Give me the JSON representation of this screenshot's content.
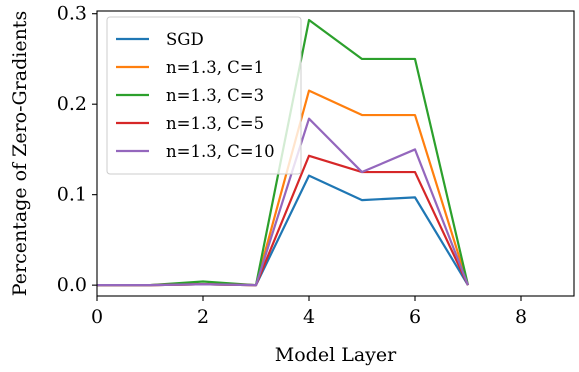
{
  "chart_data": {
    "type": "line",
    "title": "",
    "xlabel": "Model Layer",
    "ylabel": "Percentage of Zero-Gradients",
    "xlim": [
      0,
      9
    ],
    "ylim": [
      -0.012,
      0.303
    ],
    "xticks": [
      0,
      2,
      4,
      6,
      8
    ],
    "yticks": [
      0.0,
      0.1,
      0.2,
      0.3
    ],
    "xtick_labels": [
      "0",
      "2",
      "4",
      "6",
      "8"
    ],
    "ytick_labels": [
      "0.0",
      "0.1",
      "0.2",
      "0.3"
    ],
    "grid": false,
    "legend_position": "top-left",
    "x": [
      0,
      1,
      2,
      3,
      4,
      5,
      6,
      7
    ],
    "series": [
      {
        "name": "SGD",
        "color": "#1f77b4",
        "values": [
          0.0,
          0.0,
          0.001,
          0.0,
          0.121,
          0.094,
          0.097,
          0.0
        ]
      },
      {
        "name": "n=1.3, C=1",
        "color": "#ff7f0e",
        "values": [
          0.0,
          0.0,
          0.001,
          0.0,
          0.215,
          0.188,
          0.188,
          0.0
        ]
      },
      {
        "name": "n=1.3, C=3",
        "color": "#2ca02c",
        "values": [
          0.0,
          0.0,
          0.004,
          0.0,
          0.293,
          0.25,
          0.25,
          0.0
        ]
      },
      {
        "name": "n=1.3, C=5",
        "color": "#d62728",
        "values": [
          0.0,
          0.0,
          0.001,
          0.0,
          0.143,
          0.125,
          0.125,
          0.0
        ]
      },
      {
        "name": "n=1.3, C=10",
        "color": "#9467bd",
        "values": [
          0.0,
          0.0,
          0.001,
          0.0,
          0.184,
          0.125,
          0.15,
          0.0
        ]
      }
    ]
  }
}
